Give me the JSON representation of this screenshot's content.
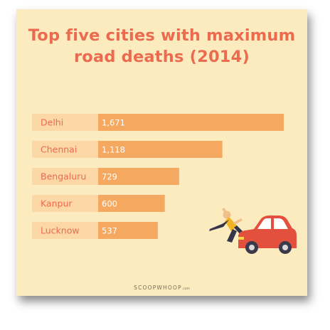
{
  "chart_data": {
    "type": "bar",
    "title_line1": "Top five cities with maximum",
    "title_line2": "road deaths (2014)",
    "categories": [
      "Delhi",
      "Chennai",
      "Bengaluru",
      "Kanpur",
      "Lucknow"
    ],
    "values": [
      1671,
      1118,
      729,
      600,
      537
    ],
    "value_labels": [
      "1,671",
      "1,118",
      "729",
      "600",
      "537"
    ],
    "orientation": "horizontal",
    "grid": false,
    "legend": "none"
  },
  "colors": {
    "background": "#fdebc0",
    "bar": "#f5a860",
    "label_block": "#fcd8a6",
    "label_text": "#ec6a4e",
    "value_text": "#ffffff",
    "title": "#ec6a4e"
  },
  "footer": {
    "brand": "SCOOPWHOOP",
    "suffix": ".com"
  },
  "illustration": {
    "icon": "car-accident-illustration"
  }
}
